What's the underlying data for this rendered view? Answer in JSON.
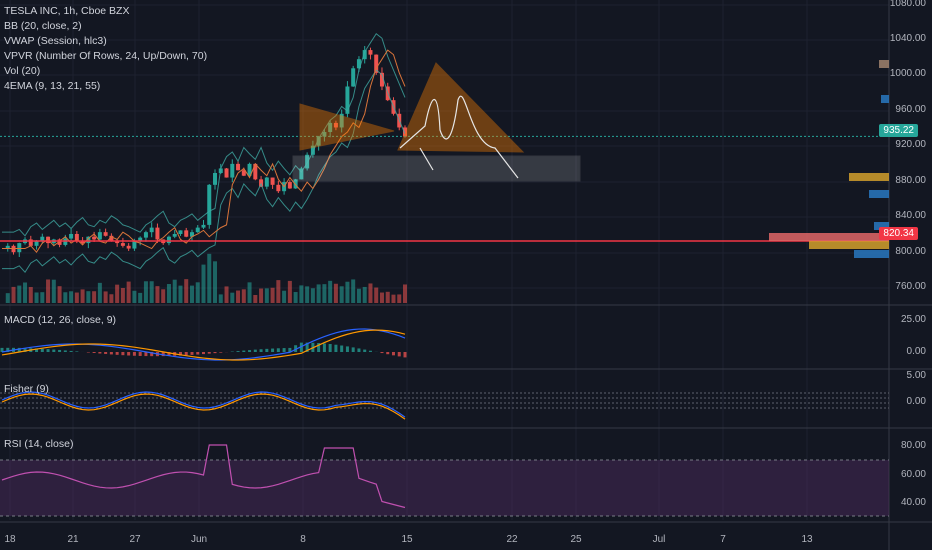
{
  "main_legend": {
    "symbol": "TESLA INC, 1h, Cboe BZX",
    "indicators": [
      "BB (20, close, 2)",
      "VWAP (Session, hlc3)",
      "VPVR (Number Of Rows, 24, Up/Down, 70)",
      "Vol (20)",
      "4EMA (9, 13, 21, 55)"
    ]
  },
  "panes": {
    "macd": {
      "title": "MACD (12, 26, close, 9)",
      "ticks": [
        "25.00",
        "0.00"
      ]
    },
    "fisher": {
      "title": "Fisher (9)",
      "ticks": [
        "5.00",
        "0.00"
      ]
    },
    "rsi": {
      "title": "RSI (14, close)",
      "ticks": [
        "80.00",
        "60.00",
        "40.00"
      ]
    }
  },
  "price_axis": {
    "ticks": [
      "1080.00",
      "1040.00",
      "1000.00",
      "960.00",
      "920.00",
      "880.00",
      "840.00",
      "800.00",
      "760.00"
    ],
    "last_price": "935.22",
    "horizontal_level": "820.34"
  },
  "time_axis": [
    "18",
    "21",
    "27",
    "Jun",
    "8",
    "15",
    "22",
    "25",
    "Jul",
    "7",
    "13"
  ],
  "colors": {
    "background": "#131722",
    "up": "#26a69a",
    "down": "#ef5350",
    "level": "#f23645",
    "pattern": "#f57c00",
    "last_price": "#26a69a",
    "rsi_band": "#4a2a5a",
    "rsi_line": "#c050b0"
  },
  "chart_data": {
    "type": "candlestick",
    "symbol": "TSLA",
    "ylim": [
      750,
      1085
    ],
    "last": 935.22,
    "level": 820.34,
    "path": [
      812,
      815,
      808,
      818,
      822,
      815,
      820,
      825,
      818,
      822,
      816,
      823,
      828,
      820,
      818,
      825,
      822,
      830,
      826,
      820,
      818,
      815,
      812,
      820,
      824,
      830,
      835,
      822,
      818,
      825,
      828,
      832,
      825,
      830,
      835,
      838,
      882,
      895,
      900,
      890,
      905,
      898,
      892,
      905,
      888,
      880,
      890,
      882,
      875,
      885,
      878,
      888,
      900,
      915,
      925,
      935,
      940,
      950,
      945,
      960,
      990,
      1010,
      1020,
      1030,
      1025,
      1005,
      990,
      975,
      960,
      945,
      935
    ]
  }
}
